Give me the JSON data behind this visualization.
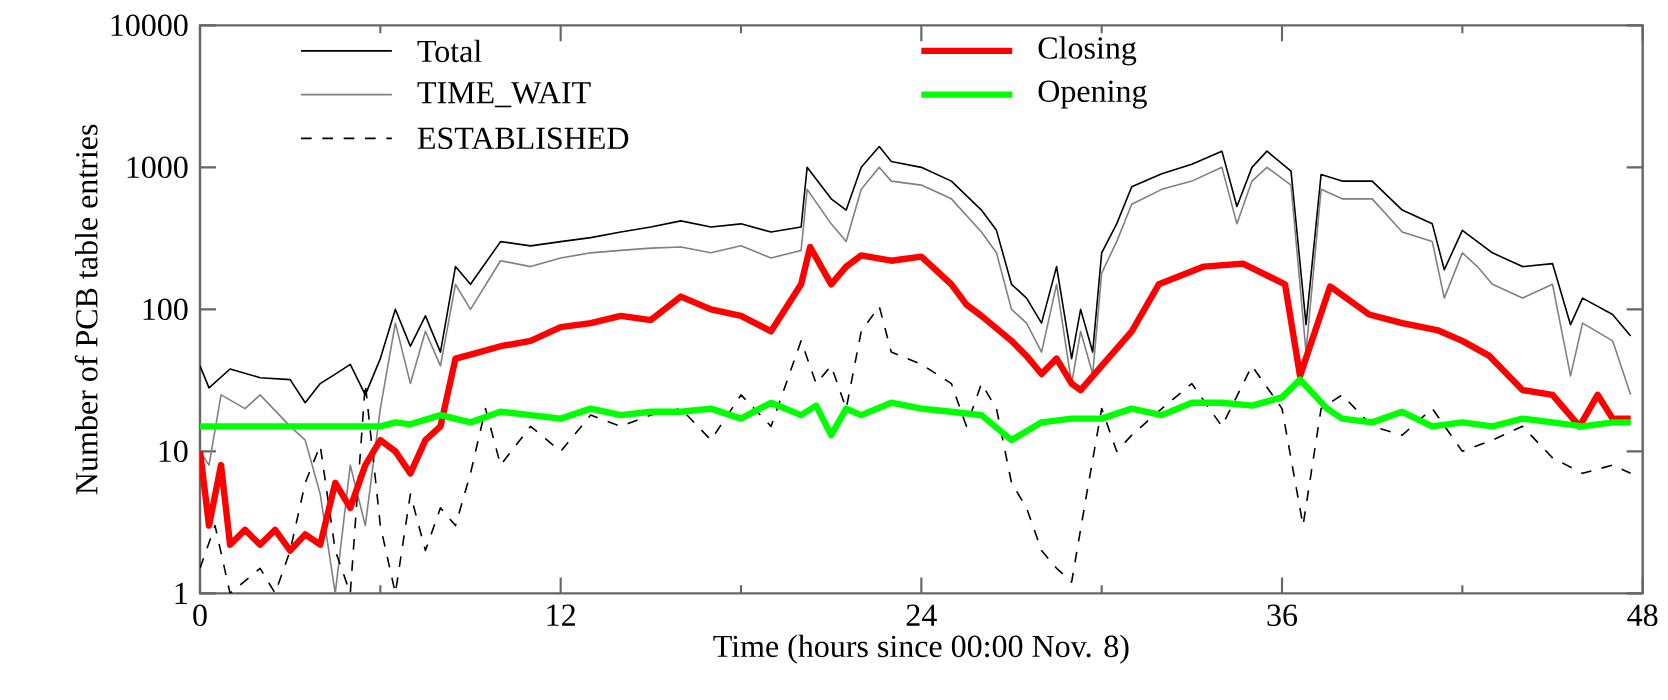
{
  "chart_data": {
    "type": "line",
    "xlabel": "Time (hours since 00:00 Nov. 8)",
    "ylabel": "Number of PCB table entries",
    "xlim": [
      0,
      48
    ],
    "xticks": [
      0,
      12,
      24,
      36,
      48
    ],
    "ylim": [
      1,
      10000
    ],
    "yticks": [
      1,
      10,
      100,
      1000,
      10000
    ],
    "log": "y",
    "legend": "top",
    "grid": false,
    "series": [
      {
        "name": "Total",
        "color": "#000000",
        "line_style": "solid",
        "x": [
          0,
          0.3,
          1,
          2,
          3,
          3.5,
          4,
          4.5,
          5,
          5.5,
          6,
          6.5,
          7,
          7.5,
          8,
          8.5,
          9,
          10,
          11,
          12,
          13,
          14,
          15,
          16,
          17,
          18,
          19,
          20,
          20.2,
          21,
          21.5,
          22,
          22.6,
          23,
          24,
          25,
          26,
          26.5,
          27,
          27.5,
          28,
          28.5,
          29,
          29.3,
          29.7,
          30,
          30.5,
          31,
          32,
          33,
          34,
          34.5,
          35,
          35.5,
          36.3,
          36.8,
          37.3,
          38,
          39,
          40,
          41,
          41.4,
          42,
          42.5,
          43,
          44,
          45,
          45.6,
          46,
          47,
          47.6
        ],
        "values": [
          40,
          28,
          38,
          33,
          32,
          22,
          30,
          35,
          41,
          25,
          45,
          100,
          55,
          90,
          50,
          200,
          150,
          300,
          280,
          300,
          320,
          350,
          380,
          420,
          380,
          400,
          350,
          380,
          1000,
          600,
          500,
          1000,
          1400,
          1100,
          1000,
          800,
          500,
          360,
          150,
          120,
          80,
          200,
          45,
          100,
          50,
          250,
          400,
          730,
          900,
          1050,
          1300,
          530,
          1000,
          1300,
          940,
          78,
          890,
          800,
          800,
          500,
          400,
          190,
          360,
          300,
          250,
          200,
          210,
          78,
          120,
          92,
          65
        ]
      },
      {
        "name": "TIME_WAIT",
        "color": "#808080",
        "line_style": "solid",
        "x": [
          0,
          0.3,
          0.7,
          1.5,
          2,
          3,
          3.5,
          4,
          4.5,
          5,
          5.5,
          6,
          6.5,
          7,
          7.5,
          8,
          8.5,
          9,
          10,
          11,
          12,
          13,
          14,
          15,
          16,
          17,
          18,
          19,
          20,
          20.2,
          21,
          21.5,
          22,
          22.6,
          23,
          24,
          25,
          26,
          26.5,
          27,
          27.5,
          28,
          28.5,
          29,
          29.3,
          29.7,
          30,
          30.5,
          31,
          32,
          33,
          34,
          34.5,
          35,
          35.5,
          36.3,
          36.8,
          37.3,
          38,
          39,
          40,
          41,
          41.4,
          42,
          42.5,
          43,
          44,
          45,
          45.6,
          46,
          47,
          47.6
        ],
        "values": [
          10,
          8,
          25,
          20,
          25,
          15,
          12,
          5,
          1,
          8,
          3,
          20,
          80,
          30,
          70,
          40,
          150,
          100,
          220,
          200,
          230,
          250,
          260,
          270,
          275,
          250,
          280,
          230,
          260,
          700,
          400,
          300,
          700,
          1000,
          800,
          750,
          600,
          350,
          250,
          100,
          80,
          50,
          150,
          30,
          70,
          35,
          180,
          300,
          550,
          700,
          800,
          1000,
          400,
          800,
          1000,
          750,
          50,
          700,
          600,
          600,
          350,
          300,
          120,
          250,
          200,
          150,
          120,
          150,
          34,
          80,
          60,
          25
        ]
      },
      {
        "name": "ESTABLISHED",
        "color": "#000000",
        "line_style": "dashed",
        "x": [
          0,
          0.5,
          1,
          2,
          2.5,
          3,
          3.5,
          4,
          4.5,
          5,
          5.5,
          6,
          6.5,
          7,
          7.5,
          8,
          8.5,
          9,
          9.5,
          10,
          11,
          12,
          13,
          14,
          15,
          16,
          17,
          18,
          19,
          20,
          20.5,
          21,
          21.5,
          22,
          22.6,
          23,
          24,
          25,
          25.5,
          26,
          26.5,
          27,
          27.5,
          28,
          28.5,
          29,
          29.5,
          30,
          30.5,
          31,
          32,
          33,
          34,
          35,
          36,
          36.7,
          37.3,
          38,
          39,
          40,
          41,
          42,
          43,
          44,
          45,
          46,
          47,
          47.6
        ],
        "values": [
          1.5,
          3,
          1,
          1.5,
          1,
          2,
          6,
          11,
          2,
          1,
          30,
          3,
          1,
          5,
          2,
          4,
          3,
          7,
          20,
          8,
          15,
          10,
          18,
          15,
          18,
          20,
          12,
          25,
          15,
          60,
          30,
          40,
          20,
          70,
          105,
          50,
          41,
          30,
          15,
          30,
          20,
          6,
          4,
          2,
          1.5,
          1.2,
          5,
          20,
          10,
          13,
          20,
          30,
          15,
          40,
          20,
          3,
          20,
          25,
          15,
          13,
          20,
          10,
          12,
          15,
          9,
          7,
          8,
          7
        ]
      },
      {
        "name": "Closing",
        "color": "#ff0000",
        "line_style": "solid",
        "x": [
          0,
          0.3,
          0.7,
          1,
          1.5,
          2,
          2.5,
          3,
          3.5,
          4,
          4.5,
          5,
          5.5,
          6,
          6.5,
          7,
          7.5,
          8,
          8.5,
          9,
          10,
          11,
          12,
          13,
          14,
          15,
          16,
          17,
          18,
          19,
          20,
          20.3,
          21,
          21.5,
          22,
          23,
          24,
          25,
          25.5,
          26,
          27,
          27.5,
          28,
          28.5,
          29,
          29.3,
          30,
          31,
          31.9,
          33.4,
          34.7,
          36.1,
          36.6,
          37.6,
          38.9,
          40,
          41.2,
          42,
          42.9,
          44,
          45,
          45.9,
          46.5,
          47,
          47.6
        ],
        "values": [
          10,
          3,
          8,
          2.2,
          2.8,
          2.2,
          2.8,
          2,
          2.6,
          2.2,
          6,
          4,
          8,
          12,
          10,
          7,
          12,
          15,
          45,
          48,
          55,
          60,
          75,
          80,
          90,
          84,
          123,
          100,
          90,
          70,
          150,
          275,
          150,
          200,
          240,
          220,
          235,
          150,
          108,
          90,
          60,
          47,
          35,
          45,
          30,
          27,
          40,
          70,
          150,
          200,
          210,
          150,
          34,
          145,
          92,
          80,
          71,
          60,
          47,
          27,
          25,
          15,
          25,
          17,
          17
        ]
      },
      {
        "name": "Opening",
        "color": "#00ff00",
        "line_style": "solid",
        "x": [
          0,
          6,
          6.5,
          7,
          8,
          9,
          10,
          11,
          12,
          13,
          14,
          15,
          16,
          17,
          18,
          19,
          20,
          20.5,
          21,
          21.5,
          22,
          23,
          24,
          25,
          26,
          27,
          28,
          29,
          30,
          31,
          32,
          33,
          34,
          35,
          36,
          36.6,
          37.5,
          38,
          39,
          40,
          41,
          42,
          43,
          44,
          45,
          46,
          47,
          47.6
        ],
        "values": [
          15,
          15,
          16,
          15.5,
          18,
          16,
          19,
          18,
          17,
          20,
          18,
          19,
          19,
          20,
          17,
          22,
          18,
          21,
          13,
          20,
          18,
          22,
          20,
          19,
          18,
          12,
          16,
          17,
          17,
          20,
          18,
          22,
          22,
          21,
          24,
          32,
          20,
          17,
          16,
          19,
          15,
          16,
          15,
          17,
          16,
          15,
          16,
          16
        ]
      }
    ]
  }
}
